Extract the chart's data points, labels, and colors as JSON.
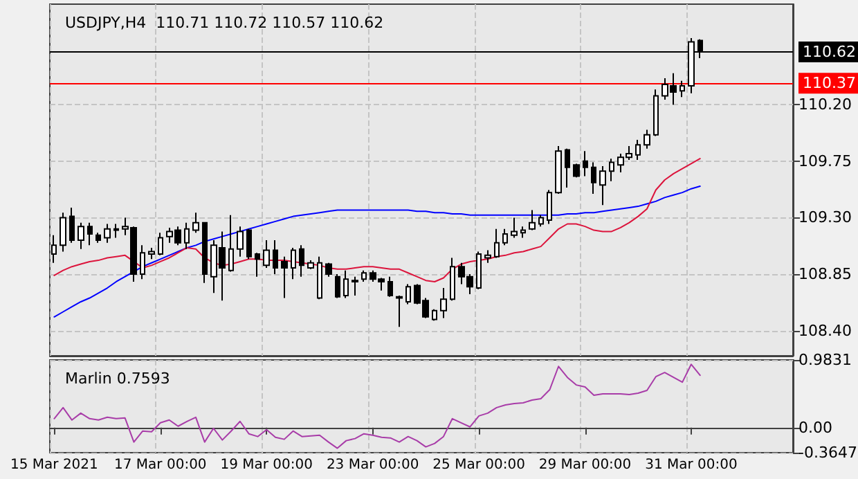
{
  "chart_data": [
    {
      "type": "candlestick",
      "title": "USDJPY,H4  110.71 110.72 110.57 110.62",
      "categories": [
        null,
        null,
        null,
        null,
        null,
        null,
        null,
        null,
        null,
        null,
        null,
        null,
        null,
        null,
        null,
        null,
        null,
        null,
        null,
        null,
        null,
        null,
        null,
        null,
        null,
        null,
        null,
        null,
        null,
        null,
        null,
        null,
        null,
        null,
        null,
        null,
        null,
        null,
        null,
        null,
        null,
        null,
        null,
        null,
        null,
        null,
        null,
        null,
        null,
        null,
        null,
        null,
        null,
        null,
        null,
        null,
        null,
        null,
        null,
        null,
        null,
        null,
        null,
        null,
        null,
        null,
        null,
        null,
        null,
        null,
        null,
        null,
        null,
        null
      ],
      "ohlc": [
        [
          109.01,
          109.16,
          108.94,
          109.08
        ],
        [
          109.08,
          109.34,
          109.03,
          109.3
        ],
        [
          109.31,
          109.38,
          109.1,
          109.12
        ],
        [
          109.12,
          109.26,
          109.05,
          109.23
        ],
        [
          109.23,
          109.26,
          109.08,
          109.17
        ],
        [
          109.16,
          109.18,
          109.1,
          109.12
        ],
        [
          109.14,
          109.25,
          109.1,
          109.21
        ],
        [
          109.2,
          109.25,
          109.14,
          109.21
        ],
        [
          109.21,
          109.3,
          109.16,
          109.23
        ],
        [
          109.22,
          109.23,
          108.79,
          108.85
        ],
        [
          108.85,
          109.08,
          108.81,
          109.02
        ],
        [
          109.01,
          109.06,
          108.97,
          109.03
        ],
        [
          109.01,
          109.18,
          109.0,
          109.14
        ],
        [
          109.15,
          109.22,
          109.1,
          109.19
        ],
        [
          109.2,
          109.23,
          109.08,
          109.1
        ],
        [
          109.1,
          109.26,
          109.05,
          109.21
        ],
        [
          109.2,
          109.34,
          109.18,
          109.26
        ],
        [
          109.26,
          109.26,
          108.78,
          108.85
        ],
        [
          108.83,
          109.12,
          108.7,
          109.08
        ],
        [
          109.06,
          109.19,
          108.64,
          108.9
        ],
        [
          108.88,
          109.32,
          108.87,
          109.05
        ],
        [
          109.05,
          109.23,
          108.99,
          109.19
        ],
        [
          109.2,
          109.21,
          108.97,
          108.99
        ],
        [
          109.01,
          109.02,
          108.83,
          108.97
        ],
        [
          108.92,
          109.12,
          108.9,
          109.04
        ],
        [
          109.04,
          109.12,
          108.85,
          108.9
        ],
        [
          108.95,
          108.99,
          108.66,
          108.9
        ],
        [
          108.9,
          109.06,
          108.81,
          109.04
        ],
        [
          109.05,
          109.08,
          108.83,
          108.92
        ],
        [
          108.9,
          108.96,
          108.89,
          108.94
        ],
        [
          108.66,
          108.99,
          108.65,
          108.94
        ],
        [
          108.93,
          108.94,
          108.83,
          108.85
        ],
        [
          108.83,
          108.85,
          108.66,
          108.67
        ],
        [
          108.68,
          108.88,
          108.66,
          108.81
        ],
        [
          108.79,
          108.83,
          108.68,
          108.8
        ],
        [
          108.81,
          108.88,
          108.79,
          108.86
        ],
        [
          108.86,
          108.88,
          108.79,
          108.81
        ],
        [
          108.81,
          108.82,
          108.72,
          108.79
        ],
        [
          108.79,
          108.83,
          108.67,
          108.68
        ],
        [
          108.67,
          108.68,
          108.43,
          108.66
        ],
        [
          108.63,
          108.77,
          108.61,
          108.75
        ],
        [
          108.76,
          108.77,
          108.61,
          108.62
        ],
        [
          108.64,
          108.66,
          108.5,
          108.51
        ],
        [
          108.49,
          108.57,
          108.48,
          108.56
        ],
        [
          108.56,
          108.74,
          108.5,
          108.65
        ],
        [
          108.65,
          108.98,
          108.64,
          108.91
        ],
        [
          108.91,
          108.94,
          108.77,
          108.83
        ],
        [
          108.83,
          108.85,
          108.69,
          108.75
        ],
        [
          108.74,
          109.03,
          108.73,
          109.01
        ],
        [
          108.98,
          109.04,
          108.94,
          109.0
        ],
        [
          108.99,
          109.21,
          108.98,
          109.1
        ],
        [
          109.1,
          109.21,
          109.08,
          109.17
        ],
        [
          109.16,
          109.3,
          109.14,
          109.19
        ],
        [
          109.18,
          109.23,
          109.14,
          109.2
        ],
        [
          109.21,
          109.36,
          109.2,
          109.26
        ],
        [
          109.25,
          109.32,
          109.23,
          109.3
        ],
        [
          109.28,
          109.52,
          109.25,
          109.5
        ],
        [
          109.5,
          109.87,
          109.49,
          109.83
        ],
        [
          109.84,
          109.85,
          109.54,
          109.7
        ],
        [
          109.72,
          109.73,
          109.62,
          109.63
        ],
        [
          109.75,
          109.83,
          109.63,
          109.7
        ],
        [
          109.7,
          109.74,
          109.49,
          109.58
        ],
        [
          109.56,
          109.71,
          109.4,
          109.67
        ],
        [
          109.67,
          109.77,
          109.59,
          109.74
        ],
        [
          109.72,
          109.81,
          109.66,
          109.78
        ],
        [
          109.78,
          109.87,
          109.76,
          109.81
        ],
        [
          109.8,
          109.92,
          109.76,
          109.88
        ],
        [
          109.88,
          110.0,
          109.85,
          109.96
        ],
        [
          109.96,
          110.32,
          109.95,
          110.27
        ],
        [
          110.27,
          110.41,
          110.24,
          110.36
        ],
        [
          110.35,
          110.45,
          110.2,
          110.3
        ],
        [
          110.31,
          110.39,
          110.26,
          110.35
        ],
        [
          110.35,
          110.73,
          110.29,
          110.7
        ],
        [
          110.71,
          110.72,
          110.57,
          110.62
        ]
      ],
      "series": [
        {
          "type": "line",
          "color": "#0000ff",
          "values": [
            108.51,
            108.55,
            108.59,
            108.63,
            108.66,
            108.7,
            108.74,
            108.79,
            108.83,
            108.87,
            108.91,
            108.94,
            108.97,
            109.0,
            109.03,
            109.06,
            109.08,
            109.11,
            109.13,
            109.15,
            109.17,
            109.19,
            109.21,
            109.23,
            109.25,
            109.27,
            109.29,
            109.31,
            109.32,
            109.33,
            109.34,
            109.35,
            109.36,
            109.36,
            109.36,
            109.36,
            109.36,
            109.36,
            109.36,
            109.36,
            109.36,
            109.35,
            109.35,
            109.34,
            109.34,
            109.33,
            109.33,
            109.32,
            109.32,
            109.32,
            109.32,
            109.32,
            109.32,
            109.32,
            109.32,
            109.32,
            109.32,
            109.32,
            109.33,
            109.33,
            109.34,
            109.34,
            109.35,
            109.36,
            109.37,
            109.38,
            109.39,
            109.41,
            109.43,
            109.46,
            109.48,
            109.5,
            109.53,
            109.55
          ]
        },
        {
          "type": "line",
          "color": "#dc143c",
          "values": [
            108.84,
            108.88,
            108.91,
            108.93,
            108.95,
            108.96,
            108.98,
            108.99,
            109.0,
            108.95,
            108.9,
            108.92,
            108.95,
            108.98,
            109.02,
            109.06,
            109.05,
            108.98,
            108.94,
            108.92,
            108.93,
            108.95,
            108.97,
            108.97,
            108.96,
            108.96,
            108.96,
            108.95,
            108.94,
            108.93,
            108.92,
            108.9,
            108.89,
            108.89,
            108.9,
            108.91,
            108.91,
            108.9,
            108.89,
            108.89,
            108.86,
            108.83,
            108.8,
            108.79,
            108.82,
            108.89,
            108.93,
            108.95,
            108.96,
            108.97,
            108.99,
            109.0,
            109.02,
            109.03,
            109.05,
            109.07,
            109.14,
            109.21,
            109.25,
            109.25,
            109.23,
            109.2,
            109.19,
            109.19,
            109.22,
            109.26,
            109.31,
            109.37,
            109.52,
            109.6,
            109.65,
            109.69,
            109.73,
            109.77
          ]
        }
      ],
      "ylim": [
        108.2,
        111.0
      ],
      "yticks": [
        {
          "value": 108.4,
          "label": "108.40"
        },
        108.85,
        {
          "value": 109.3,
          "label": "109.30"
        },
        109.75,
        {
          "value": 110.2,
          "label": "110.20"
        }
      ],
      "ref_lines": [
        {
          "axis": "y",
          "value": 110.62,
          "label": "110.62",
          "color": "#000000"
        },
        {
          "axis": "y",
          "value": 110.37,
          "label": "110.37",
          "color": "#ff0000"
        }
      ],
      "grid": true,
      "tick_labels": "y",
      "marker": "none"
    },
    {
      "type": "line",
      "title": "Marlin 0.7593",
      "categories": [
        "15 Mar 2021",
        null,
        null,
        null,
        null,
        null,
        null,
        null,
        null,
        null,
        null,
        null,
        "17 Mar 00:00",
        null,
        null,
        null,
        null,
        null,
        null,
        null,
        null,
        null,
        null,
        null,
        "19 Mar 00:00",
        null,
        null,
        null,
        null,
        null,
        null,
        null,
        null,
        null,
        null,
        null,
        "23 Mar 00:00",
        null,
        null,
        null,
        null,
        null,
        null,
        null,
        null,
        null,
        null,
        null,
        "25 Mar 00:00",
        null,
        null,
        null,
        null,
        null,
        null,
        null,
        null,
        null,
        null,
        null,
        "29 Mar 00:00",
        null,
        null,
        null,
        null,
        null,
        null,
        null,
        null,
        null,
        null,
        null,
        "31 Mar 00:00",
        null
      ],
      "series": [
        {
          "color": "#a83ca8",
          "values": [
            0.13,
            0.29,
            0.11,
            0.21,
            0.13,
            0.11,
            0.15,
            0.13,
            0.14,
            -0.21,
            -0.05,
            -0.06,
            0.07,
            0.11,
            0.02,
            0.09,
            0.15,
            -0.21,
            -0.01,
            -0.18,
            -0.05,
            0.09,
            -0.09,
            -0.13,
            -0.03,
            -0.14,
            -0.17,
            -0.05,
            -0.13,
            -0.12,
            -0.11,
            -0.21,
            -0.3,
            -0.19,
            -0.16,
            -0.09,
            -0.11,
            -0.14,
            -0.15,
            -0.21,
            -0.13,
            -0.19,
            -0.28,
            -0.23,
            -0.13,
            0.13,
            0.07,
            0.01,
            0.17,
            0.21,
            0.29,
            0.33,
            0.35,
            0.36,
            0.4,
            0.42,
            0.55,
            0.89,
            0.73,
            0.62,
            0.59,
            0.47,
            0.49,
            0.49,
            0.49,
            0.48,
            0.5,
            0.54,
            0.74,
            0.8,
            0.73,
            0.66,
            0.92,
            0.76
          ]
        }
      ],
      "ylim": [
        -0.3647,
        0.9831
      ],
      "yticks": [
        0.9831,
        {
          "value": 0,
          "label": "0.00"
        },
        -0.3647
      ],
      "grid": true,
      "marker": "none"
    }
  ]
}
